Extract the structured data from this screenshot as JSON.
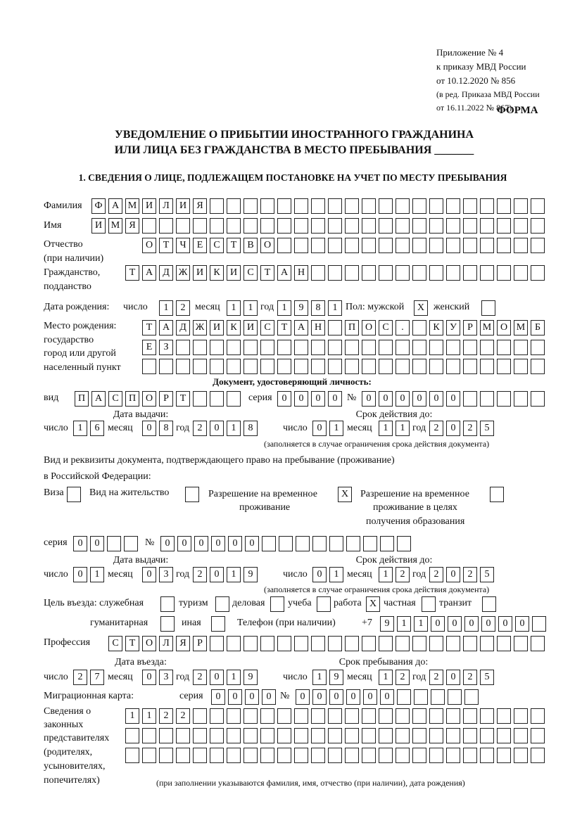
{
  "header": {
    "appendix": "Приложение № 4",
    "order": "к приказу МВД России",
    "order_date": "от 10.12.2020 № 856",
    "edition": "(в ред. Приказа МВД России",
    "edition_date": "от 16.11.2022 № 867)",
    "form_label": "ФОРМА",
    "title_line1": "УВЕДОМЛЕНИЕ О ПРИБЫТИИ ИНОСТРАННОГО ГРАЖДАНИНА",
    "title_line2": "ИЛИ ЛИЦА БЕЗ ГРАЖДАНСТВА В МЕСТО ПРЕБЫВАНИЯ _______",
    "section1": "1. СВЕДЕНИЯ О ЛИЦЕ, ПОДЛЕЖАЩЕМ ПОСТАНОВКЕ НА УЧЕТ ПО МЕСТУ ПРЕБЫВАНИЯ"
  },
  "labels": {
    "surname": "Фамилия",
    "name": "Имя",
    "patronymic": "Отчество",
    "patronymic_note": "(при наличии)",
    "citizenship": "Гражданство,",
    "citizenship2": "подданство",
    "birth_date": "Дата рождения:",
    "day": "число",
    "month": "месяц",
    "year": "год",
    "sex": "Пол: мужской",
    "female": "женский",
    "birthplace1": "Место рождения:",
    "birthplace2": "государство",
    "birthplace3": "город или другой",
    "birthplace4": "населенный пункт",
    "id_doc": "Документ, удостоверяющий личность:",
    "kind": "вид",
    "series": "серия",
    "number": "№",
    "issue_date": "Дата выдачи:",
    "valid_until": "Срок действия до:",
    "validity_note": "(заполняется в случае ограничения срока действия документа)",
    "stay_doc1": "Вид и реквизиты документа, подтверждающего право на пребывание (проживание)",
    "stay_doc2": "в Российской Федерации:",
    "visa": "Виза",
    "residence": "Вид на жительство",
    "trp1": "Разрешение на временное",
    "trp2": "проживание",
    "trpe1": "Разрешение на временное",
    "trpe2": "проживание в целях",
    "trpe3": "получения образования",
    "purpose": "Цель въезда: служебная",
    "tourism": "туризм",
    "business": "деловая",
    "study": "учеба",
    "work": "работа",
    "private": "частная",
    "transit": "транзит",
    "humanitarian": "гуманитарная",
    "other": "иная",
    "phone": "Телефон (при наличии)",
    "phone_prefix": "+7",
    "profession": "Профессия",
    "entry_date": "Дата въезда:",
    "stay_until": "Срок пребывания до:",
    "migration_card": "Миграционная карта:",
    "reps1": "Сведения о",
    "reps2": "законных",
    "reps3": "представителях",
    "reps4": "(родителях,",
    "reps5": "усыновителях,",
    "reps6": "попечителях)",
    "reps_note": "(при заполнении указываются фамилия, имя, отчество (при наличии), дата рождения)"
  },
  "fields": {
    "surname": "ФАМИЛИЯ",
    "name": "ИМЯ",
    "patronymic": "ОТЧЕСТВО",
    "citizenship": "ТАДЖИКИСТАН",
    "birth_day": "12",
    "birth_month": "11",
    "birth_year": "1981",
    "sex_male": "X",
    "sex_female": "",
    "birthplace_1": "ТАДЖИКИСТАН ПОС. КУРМОМБ",
    "birthplace_2": "ЕЗ",
    "birthplace_3": "",
    "doc_kind": "ПАСПОРТ",
    "doc_series": "0000",
    "doc_number": "000000",
    "doc_issue_day": "16",
    "doc_issue_month": "08",
    "doc_issue_year": "2018",
    "doc_valid_day": "01",
    "doc_valid_month": "11",
    "doc_valid_year": "2025",
    "visa": "",
    "residence": "",
    "trp": "X",
    "trpe": "",
    "stay_series": "00",
    "stay_number": "000000",
    "stay_issue_day": "01",
    "stay_issue_month": "03",
    "stay_issue_year": "2019",
    "stay_valid_day": "01",
    "stay_valid_month": "12",
    "stay_valid_year": "2025",
    "purpose_official": "",
    "purpose_tourism": "",
    "purpose_business": "",
    "purpose_study": "",
    "purpose_work": "X",
    "purpose_private": "",
    "purpose_transit": "",
    "purpose_humanitarian": "",
    "purpose_other": "",
    "phone": "911000000",
    "profession": "СТОЛЯР",
    "entry_day": "27",
    "entry_month": "03",
    "entry_year": "2019",
    "until_day": "19",
    "until_month": "12",
    "until_year": "2025",
    "mc_series": "0000",
    "mc_number": "000000",
    "reps_1": "1122",
    "reps_2": "",
    "reps_3": ""
  }
}
